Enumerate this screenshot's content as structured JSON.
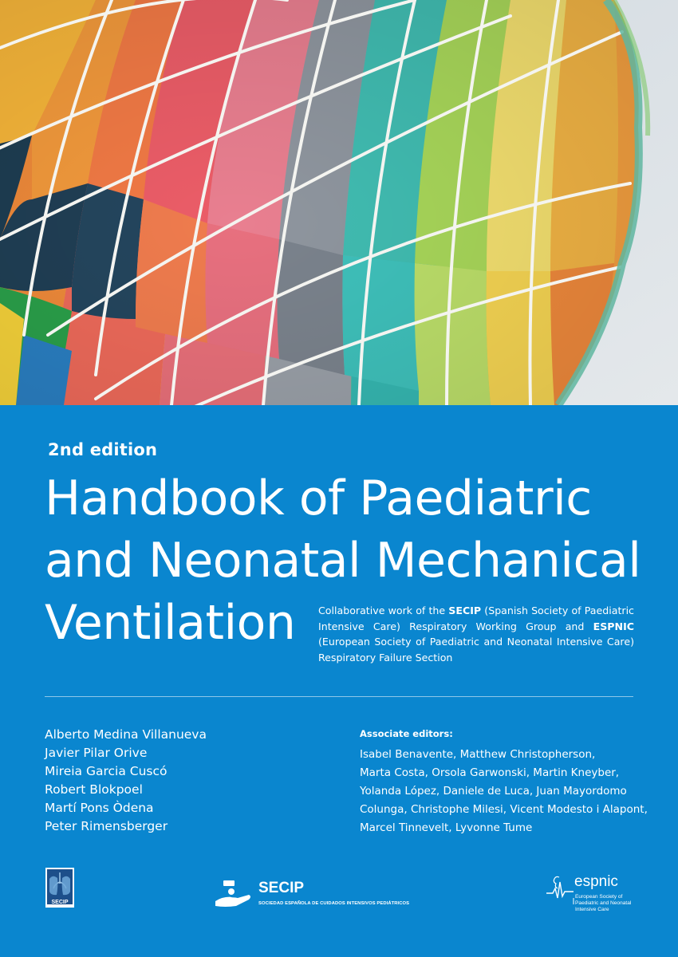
{
  "cover": {
    "edition": "2nd edition",
    "title_lines": [
      "Handbook of Paediatric",
      "and Neonatal Mechanical",
      "Ventilation"
    ],
    "collaborative": {
      "p1": "Collaborative work of the ",
      "secip": "SECIP",
      "p2": " (Spanish Society of Paediatric Intensive Care) Respiratory Working Group and ",
      "espnic": "ESPNIC",
      "p3": " (European Society of Paediatric and Neonatal Intensive Care) Respiratory Failure Section"
    },
    "editors": [
      "Alberto Medina Villanueva",
      "Javier Pilar Orive",
      "Mireia Garcia Cuscó",
      "Robert Blokpoel",
      "Martí Pons Òdena",
      "Peter Rimensberger"
    ],
    "associate_editors_heading": "Associate editors:",
    "associate_editors_lines": [
      "Isabel Benavente, Matthew Christopherson,",
      "Marta Costa, Orsola Garwonski, Martin Kneyber,",
      "Yolanda López, Daniele de Luca, Juan Mayordomo",
      "Colunga, Christophe Milesi, Vicent Modesto i Alapont,",
      "Marcel Tinnevelt, Lyvonne Tume"
    ]
  },
  "logos": {
    "respiratory_group": {
      "icon": "lungs-logo-icon",
      "label": "SECIP"
    },
    "secip": {
      "icon": "secip-logo-icon",
      "name": "SECIP",
      "subtitle": "SOCIEDAD ESPAÑOLA DE CUIDADOS INTENSIVOS PEDIÁTRICOS"
    },
    "espnic": {
      "icon": "espnic-heartbeat-icon",
      "name": "espnic",
      "subtitle": "European Society of Paediatric and Neonatal Intensive Care"
    }
  },
  "colors": {
    "background": "#0a86cf",
    "text": "#ffffff"
  }
}
